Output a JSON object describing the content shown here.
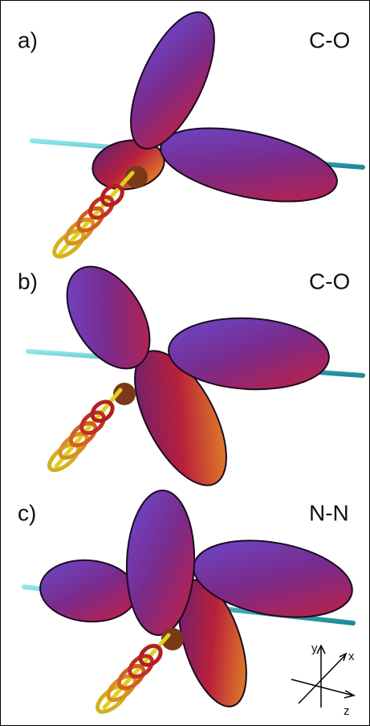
{
  "panels": [
    {
      "label": "a)",
      "molecule": "C-O"
    },
    {
      "label": "b)",
      "molecule": "C-O"
    },
    {
      "label": "c)",
      "molecule": "N-N"
    }
  ],
  "axes": {
    "y": "y",
    "x": "x",
    "z": "z"
  }
}
